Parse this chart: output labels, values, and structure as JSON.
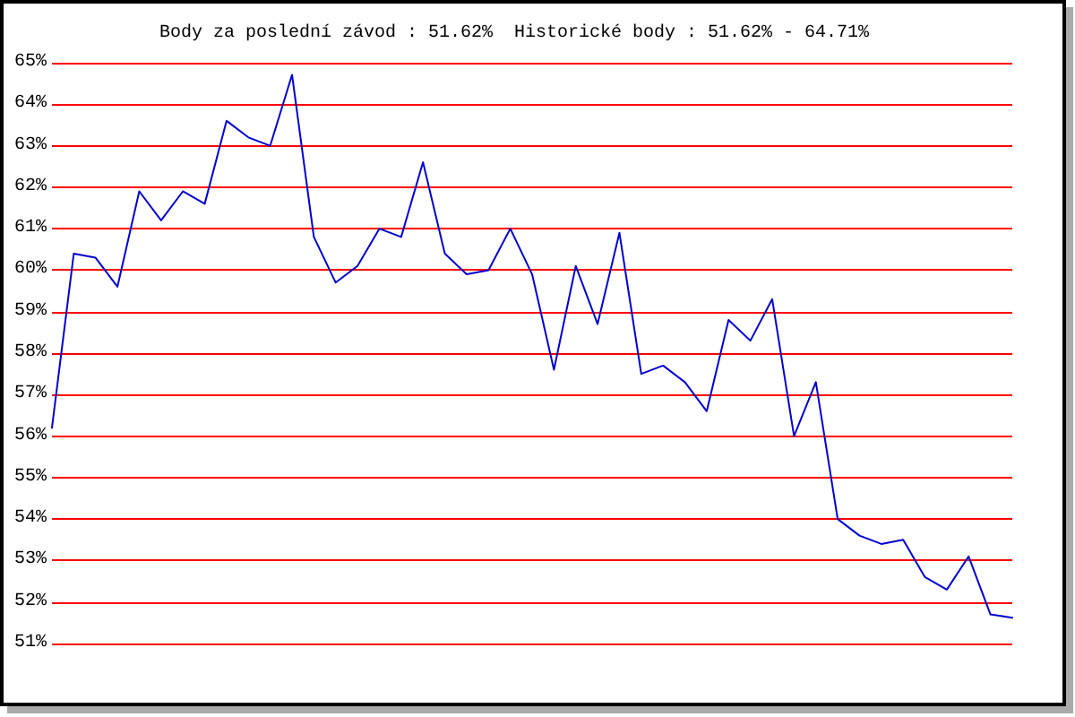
{
  "chart_data": {
    "type": "line",
    "title": "Body za poslední závod : 51.62%  Historické body : 51.62% - 64.71%",
    "categories": [
      null,
      null,
      null,
      null,
      null,
      null,
      null,
      null,
      null,
      null,
      null,
      null,
      null,
      null,
      null,
      null,
      null,
      null,
      null,
      null,
      null,
      null,
      null,
      null,
      null,
      null,
      null,
      null,
      null,
      null,
      null,
      null,
      null,
      null,
      null,
      null,
      null,
      null,
      null,
      null,
      null,
      null,
      null,
      null,
      null
    ],
    "series": [
      {
        "color": "#0000cc",
        "values": [
          56.2,
          60.4,
          60.3,
          59.6,
          61.9,
          61.2,
          61.9,
          61.6,
          63.6,
          63.2,
          63.0,
          64.71,
          60.8,
          59.7,
          60.1,
          61.0,
          60.8,
          62.6,
          60.4,
          59.9,
          60.0,
          61.0,
          59.9,
          57.6,
          60.1,
          58.7,
          60.9,
          57.5,
          57.7,
          57.3,
          56.6,
          58.8,
          58.3,
          59.3,
          56.0,
          57.3,
          54.0,
          53.6,
          53.4,
          53.5,
          52.6,
          52.3,
          53.1,
          51.7,
          51.62
        ]
      }
    ],
    "ylim": [
      51,
      65
    ],
    "yticks": [
      {
        "value": 51,
        "label": "51%"
      },
      {
        "value": 52,
        "label": "52%"
      },
      {
        "value": 53,
        "label": "53%"
      },
      {
        "value": 54,
        "label": "54%"
      },
      {
        "value": 55,
        "label": "55%"
      },
      {
        "value": 56,
        "label": "56%"
      },
      {
        "value": 57,
        "label": "57%"
      },
      {
        "value": 58,
        "label": "58%"
      },
      {
        "value": 59,
        "label": "59%"
      },
      {
        "value": 60,
        "label": "60%"
      },
      {
        "value": 61,
        "label": "61%"
      },
      {
        "value": 62,
        "label": "62%"
      },
      {
        "value": 63,
        "label": "63%"
      },
      {
        "value": 64,
        "label": "64%"
      },
      {
        "value": 65,
        "label": "65%"
      }
    ],
    "grid": "y",
    "tick_labels": "y",
    "marker": "none",
    "line_style": "solid"
  }
}
